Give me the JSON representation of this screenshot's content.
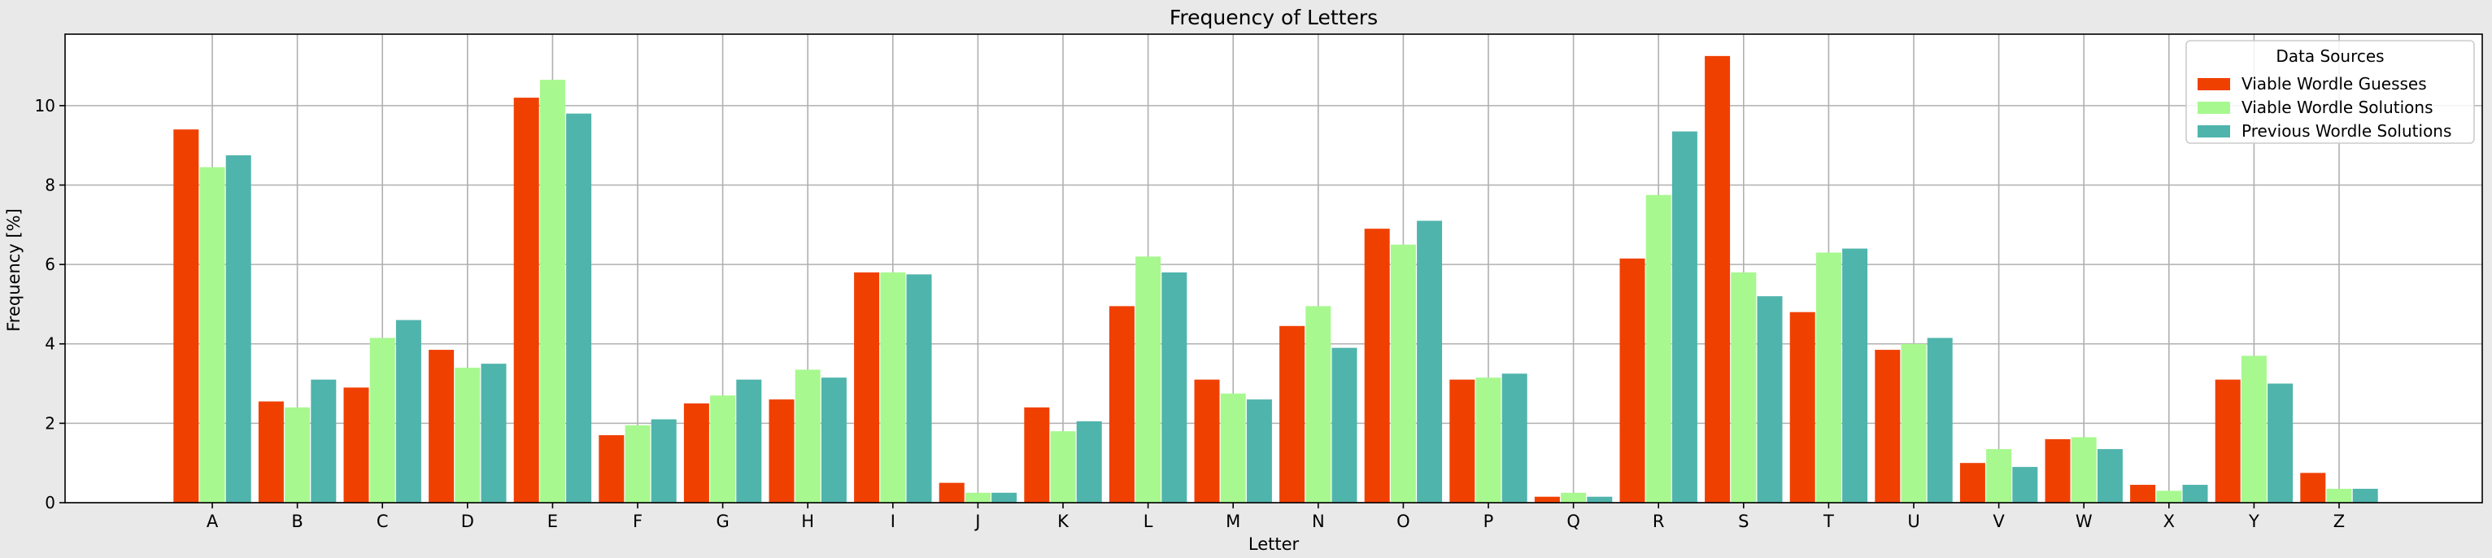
{
  "chart_data": {
    "type": "bar",
    "title": "Frequency of Letters",
    "xlabel": "Letter",
    "ylabel": "Frequency [%]",
    "ylim": [
      0,
      11.8
    ],
    "yticks": [
      0,
      2,
      4,
      6,
      8,
      10
    ],
    "grid": true,
    "legend": {
      "title": "Data Sources",
      "placement": "top-right"
    },
    "categories": [
      "A",
      "B",
      "C",
      "D",
      "E",
      "F",
      "G",
      "H",
      "I",
      "J",
      "K",
      "L",
      "M",
      "N",
      "O",
      "P",
      "Q",
      "R",
      "S",
      "T",
      "U",
      "V",
      "W",
      "X",
      "Y",
      "Z"
    ],
    "series": [
      {
        "name": "Viable Wordle Guesses",
        "color": "#f04000",
        "values": [
          9.4,
          2.55,
          2.9,
          3.85,
          10.2,
          1.7,
          2.5,
          2.6,
          5.8,
          0.5,
          2.4,
          4.95,
          3.1,
          4.45,
          6.9,
          3.1,
          0.15,
          6.15,
          11.25,
          4.8,
          3.85,
          1.0,
          1.6,
          0.45,
          3.1,
          0.75
        ]
      },
      {
        "name": "Viable Wordle Solutions",
        "color": "#a8f890",
        "values": [
          8.45,
          2.4,
          4.15,
          3.4,
          10.65,
          1.95,
          2.7,
          3.35,
          5.8,
          0.25,
          1.8,
          6.2,
          2.75,
          4.95,
          6.5,
          3.15,
          0.25,
          7.75,
          5.8,
          6.3,
          4.0,
          1.35,
          1.65,
          0.3,
          3.7,
          0.35
        ]
      },
      {
        "name": "Previous Wordle Solutions",
        "color": "#4fb4ac",
        "values": [
          8.75,
          3.1,
          4.6,
          3.5,
          9.8,
          2.1,
          3.1,
          3.15,
          5.75,
          0.25,
          2.05,
          5.8,
          2.6,
          3.9,
          7.1,
          3.25,
          0.15,
          9.35,
          5.2,
          6.4,
          4.15,
          0.9,
          1.35,
          0.45,
          3.0,
          0.35
        ]
      }
    ]
  }
}
